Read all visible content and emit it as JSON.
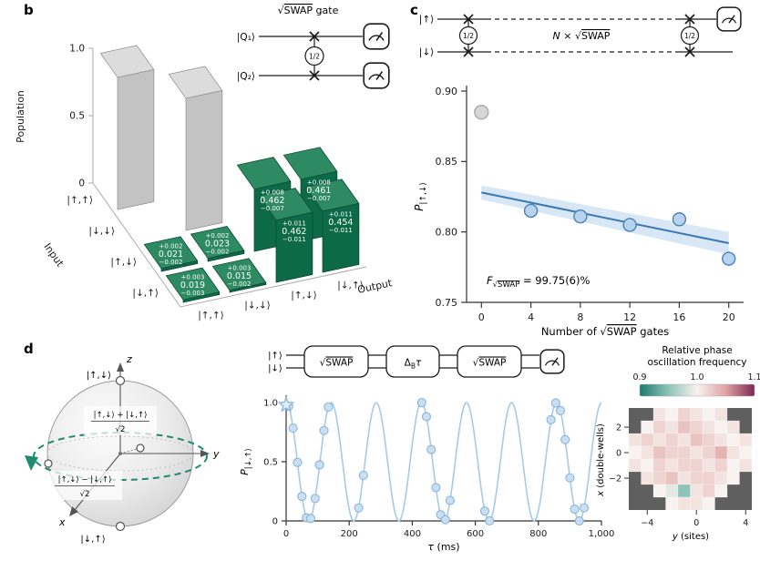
{
  "figure": {
    "colors": {
      "green_front": "#0d6a49",
      "green_top": "#2e8a62",
      "green_side": "#0a4e36",
      "gray_top": "#dcdcdc",
      "gray_front": "#c3c3c3",
      "gray_side": "#9b9b9b",
      "blue_point_fill": "#b7d3ed",
      "blue_point_edge": "#4a82b8",
      "fit_line": "#3c78b4",
      "band": "#bdd7ef",
      "curve": "#a6cae9",
      "teal": "#1f8a70",
      "heat_frame": "#5f5f5f"
    }
  },
  "panel_b": {
    "label": "b",
    "circuit": {
      "title_sqrt": "√",
      "title_swap": "SWAP",
      "title_rest": " gate",
      "q1": "|Q₁⟩",
      "q2": "|Q₂⟩",
      "half": "1/2"
    }
  },
  "panel_c": {
    "label": "c",
    "circuit": {
      "ket_up": "|↑⟩",
      "ket_down": "|↓⟩",
      "half": "1/2",
      "n_italic": "N",
      "n_mid": " × √",
      "n_swap": "SWAP"
    },
    "fidelity": {
      "f": "F",
      "sub_sqrt": "√",
      "sub_swap": "SWAP",
      "value": " = 99.75(6)%"
    }
  },
  "panel_d": {
    "label": "d",
    "bloch": {
      "axis_x": "x",
      "axis_y": "y",
      "axis_z": "z",
      "north": "|↑,↓⟩",
      "south": "|↓,↑⟩",
      "plus_num": "|↑,↓⟩ + |↓,↑⟩",
      "plus_den": "√2",
      "minus_num": "|↑,↓⟩ − |↓,↑⟩",
      "minus_den": "√2"
    },
    "circuit": {
      "ket_up": "|↑⟩",
      "ket_down": "|↓⟩",
      "gate1_sqrt": "√",
      "gate1_swap": "SWAP",
      "gate2_delta": "Δ",
      "gate2_sub": "B",
      "gate2_tau": "τ",
      "gate3_sqrt": "√",
      "gate3_swap": "SWAP"
    }
  },
  "chart_data": [
    {
      "id": "b_population",
      "type": "bar",
      "zlabel": "Population",
      "xlabel": "Output",
      "ylabel": "Input",
      "zticks": [
        "0",
        "0.5",
        "1.0"
      ],
      "ztick_vals": [
        0,
        0.5,
        1.0
      ],
      "input_states": [
        "|↑,↑⟩",
        "|↓,↓⟩",
        "|↑,↓⟩",
        "|↓,↑⟩"
      ],
      "output_states": [
        "|↑,↑⟩",
        "|↓,↓⟩",
        "|↑,↓⟩",
        "|↓,↑⟩"
      ],
      "bars": [
        {
          "input": 0,
          "output": 0,
          "value": 0.98,
          "color": "gray"
        },
        {
          "input": 1,
          "output": 1,
          "value": 0.98,
          "color": "gray"
        },
        {
          "input": 2,
          "output": 0,
          "value": 0.021,
          "color": "green",
          "plus": "+0.002",
          "label": "0.021",
          "minus": "−0.002"
        },
        {
          "input": 2,
          "output": 1,
          "value": 0.023,
          "color": "green",
          "plus": "+0.002",
          "label": "0.023",
          "minus": "−0.002"
        },
        {
          "input": 3,
          "output": 0,
          "value": 0.019,
          "color": "green",
          "plus": "+0.003",
          "label": "0.019",
          "minus": "−0.003"
        },
        {
          "input": 3,
          "output": 1,
          "value": 0.015,
          "color": "green",
          "plus": "+0.003",
          "label": "0.015",
          "minus": "−0.002"
        },
        {
          "input": 2,
          "output": 2,
          "value": 0.462,
          "color": "green",
          "plus": "+0.008",
          "label": "0.462",
          "minus": "−0.007"
        },
        {
          "input": 2,
          "output": 3,
          "value": 0.461,
          "color": "green",
          "plus": "+0.008",
          "label": "0.461",
          "minus": "−0.007"
        },
        {
          "input": 3,
          "output": 2,
          "value": 0.462,
          "color": "green",
          "plus": "+0.011",
          "label": "0.462",
          "minus": "−0.011"
        },
        {
          "input": 3,
          "output": 3,
          "value": 0.454,
          "color": "green",
          "plus": "+0.011",
          "label": "0.454",
          "minus": "−0.011"
        }
      ]
    },
    {
      "id": "c_fidelity",
      "type": "scatter",
      "ylabel_main": "P",
      "ylabel_sub": "|↑,↓⟩",
      "xlabel_pre": "Number of √",
      "xlabel_swap": "SWAP",
      "xlabel_post": " gates",
      "yticks": [
        "0.75",
        "0.80",
        "0.85",
        "0.90"
      ],
      "ytick_vals": [
        0.75,
        0.8,
        0.85,
        0.9
      ],
      "xticks": [
        "0",
        "4",
        "8",
        "12",
        "16",
        "20"
      ],
      "xtick_vals": [
        0,
        4,
        8,
        12,
        16,
        20
      ],
      "xlim": [
        -1.2,
        21.2
      ],
      "ylim": [
        0.75,
        0.9
      ],
      "excluded_point": {
        "x": 0,
        "y": 0.885,
        "err": 0.004
      },
      "points": [
        {
          "x": 4,
          "y": 0.815,
          "err": 0.005
        },
        {
          "x": 8,
          "y": 0.811,
          "err": 0.004
        },
        {
          "x": 12,
          "y": 0.805,
          "err": 0.004
        },
        {
          "x": 16,
          "y": 0.809,
          "err": 0.005
        },
        {
          "x": 20,
          "y": 0.781,
          "err": 0.005
        }
      ],
      "fit": {
        "x0": 0,
        "y0": 0.828,
        "x1": 20,
        "y1": 0.792,
        "band0": 0.005,
        "band1": 0.008
      }
    },
    {
      "id": "d_oscillation",
      "type": "line",
      "ylabel_main": "P",
      "ylabel_sub": "|↓,↑⟩",
      "xlabel_tau": "τ",
      "xlabel_rest": " (ms)",
      "yticks": [
        "0",
        "0.5",
        "1.0"
      ],
      "ytick_vals": [
        0,
        0.5,
        1.0
      ],
      "xticks": [
        "0",
        "200",
        "400",
        "600",
        "800",
        "1,000"
      ],
      "xtick_vals": [
        0,
        200,
        400,
        600,
        800,
        1000
      ],
      "xlim": [
        0,
        1000
      ],
      "ylim": [
        0,
        1
      ],
      "curve": {
        "offset": 0.5,
        "amplitude": 0.5,
        "period_ms": 143
      },
      "star_point": {
        "x": 0,
        "y": 0.98
      },
      "points": [
        [
          8,
          0.969
        ],
        [
          22,
          0.784
        ],
        [
          36,
          0.494
        ],
        [
          50,
          0.207
        ],
        [
          64,
          0.027
        ],
        [
          78,
          0.02
        ],
        [
          92,
          0.19
        ],
        [
          106,
          0.474
        ],
        [
          120,
          0.764
        ],
        [
          134,
          0.962
        ],
        [
          230,
          0.11
        ],
        [
          245,
          0.385
        ],
        [
          430,
          0.999
        ],
        [
          445,
          0.881
        ],
        [
          460,
          0.603
        ],
        [
          475,
          0.282
        ],
        [
          490,
          0.052
        ],
        [
          505,
          0.01
        ],
        [
          520,
          0.173
        ],
        [
          630,
          0.083
        ],
        [
          645,
          0.001
        ],
        [
          840,
          0.855
        ],
        [
          855,
          0.996
        ],
        [
          870,
          0.932
        ],
        [
          885,
          0.687
        ],
        [
          900,
          0.364
        ],
        [
          915,
          0.099
        ],
        [
          930,
          0.0
        ],
        [
          945,
          0.11
        ]
      ]
    },
    {
      "id": "d_heatmap",
      "type": "heatmap",
      "title1": "Relative phase",
      "title2": "oscillation frequency",
      "colorbar_ticks": [
        "0.9",
        "1.0",
        "1.1"
      ],
      "colorbar_vals": [
        0.9,
        1.0,
        1.1
      ],
      "colormap": [
        [
          0.9,
          "#1c7a70"
        ],
        [
          0.95,
          "#8ec3ba"
        ],
        [
          1.0,
          "#f8f3f0"
        ],
        [
          1.05,
          "#dfa3a3"
        ],
        [
          1.1,
          "#7e2553"
        ]
      ],
      "ylabel_x": "x",
      "ylabel_rest": " (double-wells)",
      "xlabel_y": "y",
      "xlabel_rest": " (sites)",
      "yticks": [
        {
          "label": "2",
          "row": 1
        },
        {
          "label": "0",
          "row": 3
        },
        {
          "label": "−2",
          "row": 5
        }
      ],
      "xticks": [
        {
          "label": "−4",
          "col": 1
        },
        {
          "label": "0",
          "col": 5
        },
        {
          "label": "4",
          "col": 9
        }
      ],
      "values": [
        [
          null,
          null,
          1.01,
          1.0,
          1.02,
          1.01,
          1.0,
          1.01,
          null,
          null
        ],
        [
          null,
          1.0,
          1.02,
          1.01,
          1.03,
          1.02,
          1.01,
          1.0,
          1.01,
          null
        ],
        [
          1.01,
          1.02,
          1.01,
          1.02,
          1.01,
          1.03,
          1.02,
          1.01,
          1.0,
          1.01
        ],
        [
          1.0,
          1.01,
          1.03,
          1.02,
          1.02,
          1.01,
          1.02,
          1.04,
          1.01,
          1.0
        ],
        [
          1.01,
          1.0,
          1.02,
          1.01,
          1.02,
          1.02,
          1.01,
          1.02,
          1.0,
          1.01
        ],
        [
          null,
          1.01,
          1.02,
          1.03,
          1.01,
          1.02,
          1.02,
          1.01,
          1.0,
          null
        ],
        [
          null,
          null,
          1.0,
          0.99,
          0.95,
          1.01,
          1.02,
          1.0,
          null,
          null
        ],
        [
          null,
          null,
          null,
          1.0,
          1.01,
          1.01,
          1.0,
          null,
          null,
          null
        ]
      ]
    }
  ]
}
